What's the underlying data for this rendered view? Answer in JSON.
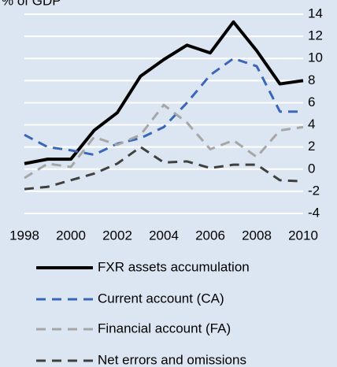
{
  "chart_data": {
    "type": "line",
    "title": "% of GDP",
    "x": [
      1998,
      1999,
      2000,
      2001,
      2002,
      2003,
      2004,
      2005,
      2006,
      2007,
      2008,
      2009,
      2010
    ],
    "xlim": [
      1998,
      2010
    ],
    "xticks": [
      1998,
      2000,
      2002,
      2004,
      2006,
      2008,
      2010
    ],
    "ylim": [
      -4,
      14
    ],
    "yticks": [
      -4,
      -2,
      0,
      2,
      4,
      6,
      8,
      10,
      12,
      14
    ],
    "grid": true,
    "series": [
      {
        "name": "FXR assets accumulation",
        "color": "#000000",
        "dash": "solid",
        "values": [
          0.5,
          0.9,
          0.9,
          3.5,
          5.1,
          8.4,
          9.9,
          11.2,
          10.5,
          13.3,
          10.7,
          7.7,
          8.0
        ]
      },
      {
        "name": "Current account (CA)",
        "color": "#3a66b8",
        "dash": "dashed",
        "values": [
          3.1,
          2.0,
          1.7,
          1.3,
          2.3,
          2.8,
          3.8,
          6.0,
          8.5,
          10.0,
          9.3,
          5.2,
          5.2
        ]
      },
      {
        "name": "Financial account (FA)",
        "color": "#a6a6a6",
        "dash": "dashed",
        "values": [
          -0.8,
          0.5,
          0.2,
          2.9,
          2.2,
          3.1,
          5.8,
          4.2,
          1.8,
          2.6,
          1.1,
          3.5,
          3.8
        ]
      },
      {
        "name": "Net errors and omissions",
        "color": "#404040",
        "dash": "dashed",
        "values": [
          -1.8,
          -1.6,
          -1.0,
          -0.4,
          0.5,
          2.0,
          0.6,
          0.7,
          0.1,
          0.4,
          0.4,
          -1.0,
          -1.1
        ]
      }
    ]
  }
}
